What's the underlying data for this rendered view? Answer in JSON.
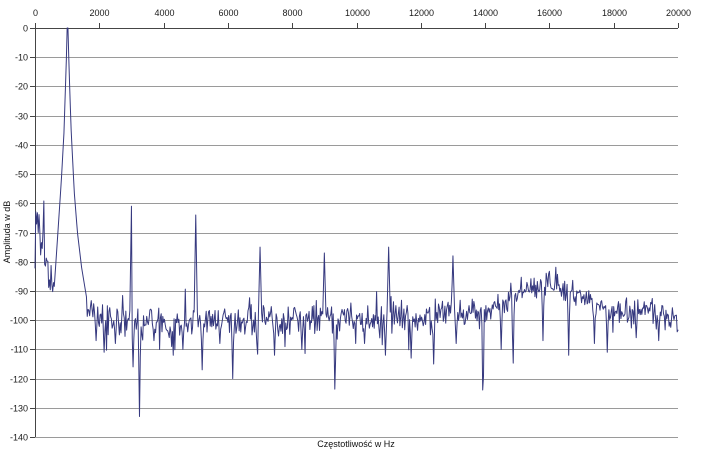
{
  "chart_data": {
    "type": "line",
    "title": "",
    "xlabel": "Częstotliwość w Hz",
    "ylabel": "Amplituda w dB",
    "xlim": [
      0,
      20000
    ],
    "ylim": [
      -140,
      0
    ],
    "x_ticks": [
      0,
      2000,
      4000,
      6000,
      8000,
      10000,
      12000,
      14000,
      16000,
      18000,
      20000
    ],
    "y_ticks": [
      0,
      -10,
      -20,
      -30,
      -40,
      -50,
      -60,
      -70,
      -80,
      -90,
      -100,
      -110,
      -120,
      -130,
      -140
    ],
    "grid": "horizontal-only",
    "legend": "none",
    "line_color": "#36397f",
    "grid_color": "#9a9a9a",
    "axis_color": "#454545",
    "background_color": "#ffffff",
    "sample_step_hz": 25,
    "noise_seed": 12,
    "outlier_probability": 0.05,
    "fundamental_hz": 1000,
    "peaks": [
      [
        1000,
        0
      ],
      [
        3000,
        -61
      ],
      [
        5000,
        -64
      ],
      [
        7000,
        -75
      ],
      [
        9000,
        -77
      ],
      [
        11000,
        -75
      ],
      [
        13000,
        -78
      ]
    ],
    "peak_width_hz": 55,
    "main_peak_skirt": [
      [
        560,
        -95
      ],
      [
        700,
        -72
      ],
      [
        820,
        -52
      ],
      [
        900,
        -36
      ],
      [
        960,
        -16
      ],
      [
        1000,
        -2
      ],
      [
        1025,
        0
      ],
      [
        1060,
        -14
      ],
      [
        1120,
        -34
      ],
      [
        1220,
        -56
      ],
      [
        1320,
        -70
      ],
      [
        1450,
        -82
      ],
      [
        1600,
        -92
      ]
    ],
    "notches": [
      [
        1900,
        -107
      ],
      [
        2150,
        -111
      ],
      [
        2500,
        -108
      ],
      [
        3050,
        -116
      ],
      [
        3250,
        -133
      ],
      [
        3700,
        -107
      ],
      [
        4250,
        -109
      ],
      [
        4600,
        -110
      ],
      [
        5200,
        -117
      ],
      [
        5750,
        -108
      ],
      [
        6150,
        -120
      ],
      [
        6900,
        -108
      ],
      [
        7450,
        -112
      ],
      [
        8300,
        -110
      ],
      [
        9330,
        -127
      ],
      [
        10250,
        -108
      ],
      [
        10900,
        -112
      ],
      [
        11700,
        -113
      ],
      [
        12400,
        -115
      ],
      [
        13100,
        -108
      ],
      [
        13935,
        -133
      ],
      [
        14500,
        -110
      ],
      [
        14870,
        -118
      ],
      [
        15800,
        -107
      ],
      [
        16600,
        -112
      ],
      [
        17400,
        -108
      ],
      [
        17800,
        -111
      ],
      [
        18700,
        -106
      ],
      [
        19400,
        -107
      ]
    ],
    "notch_width_hz": 40,
    "noise_floor": [
      [
        0,
        -63
      ],
      [
        250,
        -76
      ],
      [
        500,
        -88
      ],
      [
        750,
        -92
      ],
      [
        1000,
        -95
      ],
      [
        1500,
        -95
      ],
      [
        2000,
        -99
      ],
      [
        2600,
        -100
      ],
      [
        4000,
        -101
      ],
      [
        6000,
        -100
      ],
      [
        8000,
        -100
      ],
      [
        10000,
        -100
      ],
      [
        12000,
        -99
      ],
      [
        13500,
        -98
      ],
      [
        14400,
        -95
      ],
      [
        15000,
        -91
      ],
      [
        15700,
        -88
      ],
      [
        16300,
        -88
      ],
      [
        17000,
        -92
      ],
      [
        17600,
        -95
      ],
      [
        18300,
        -97
      ],
      [
        19500,
        -97
      ],
      [
        20000,
        -101
      ]
    ],
    "noise_amplitude": [
      [
        0,
        13
      ],
      [
        300,
        11
      ],
      [
        600,
        8
      ],
      [
        900,
        4
      ],
      [
        1300,
        4
      ],
      [
        1700,
        5
      ],
      [
        2200,
        6
      ],
      [
        13000,
        6
      ],
      [
        15000,
        5
      ],
      [
        16000,
        6
      ],
      [
        18000,
        5
      ],
      [
        20000,
        5
      ]
    ]
  }
}
